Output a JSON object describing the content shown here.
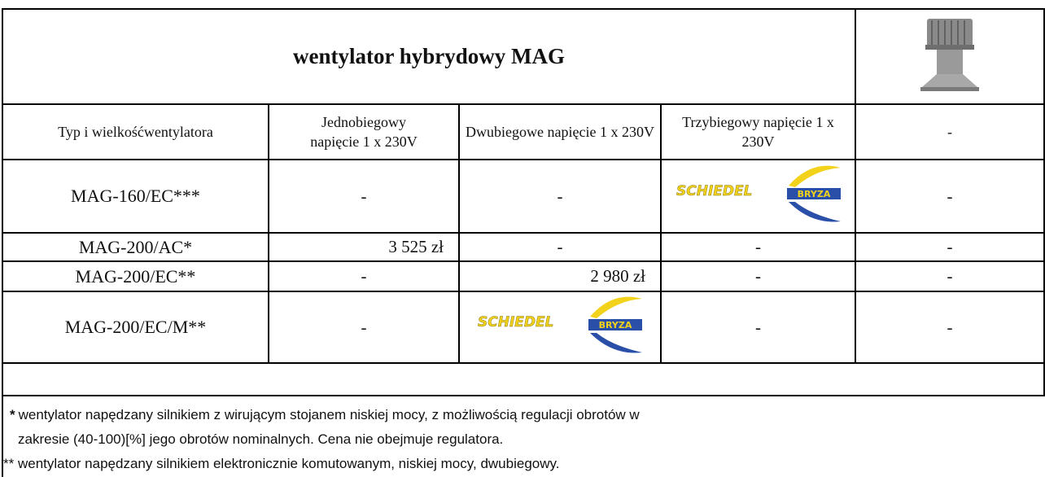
{
  "header": {
    "title": "wentylator hybrydowy  MAG"
  },
  "table": {
    "columns": [
      "Typ i wielkośćwentylatora",
      "Jednobiegowy napięcie 1 x 230V",
      "Dwubiegowe napięcie 1 x 230V",
      "Trzybiegowy napięcie 1 x 230V",
      "-"
    ],
    "rows": [
      [
        "MAG-160/EC***",
        "-",
        "-",
        {
          "brand": "SCHIEDEL",
          "sub": "BRYZA"
        },
        "-"
      ],
      [
        "MAG-200/AC*",
        "3 525 zł",
        "-",
        "-",
        "-"
      ],
      [
        "MAG-200/EC**",
        "-",
        "2 980 zł",
        "-",
        "-"
      ],
      [
        "MAG-200/EC/M**",
        "-",
        {
          "brand": "SCHIEDEL",
          "sub": "BRYZA"
        },
        "-",
        "-"
      ]
    ]
  },
  "footnotes": [
    {
      "marker": "*",
      "lines": [
        "wentylator napędzany silnikiem z wirującym stojanem niskiej mocy, z możliwością regulacji obrotów w",
        "zakresie (40-100)[%] jego obrotów nominalnych. Cena nie obejmuje regulatora."
      ]
    },
    {
      "marker": "**",
      "lines": [
        "wentylator napędzany silnikiem elektronicznie komutowanym, niskiej mocy, dwubiegowy."
      ]
    }
  ]
}
